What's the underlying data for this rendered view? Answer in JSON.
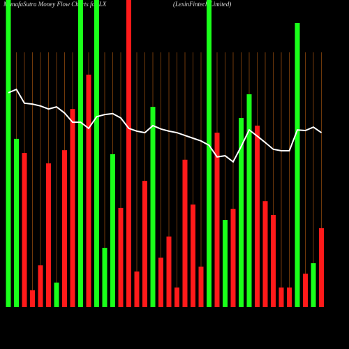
{
  "chart_data": {
    "type": "money-flow",
    "title": "MunafaSutra  Money Flow  Charts for LX",
    "subtitle": "(LexinFintech Limited)",
    "ylim": [
      0,
      100
    ],
    "grid_color": "#a0520f",
    "categories": [
      null,
      null,
      null,
      null,
      null,
      null,
      null,
      null,
      null,
      null,
      null,
      null,
      null,
      null,
      null,
      null,
      null,
      null,
      null,
      null,
      null,
      null,
      null,
      null,
      null,
      null,
      null,
      null,
      null,
      null,
      null,
      null,
      null,
      null,
      null,
      null,
      null,
      null,
      null,
      null
    ],
    "bars": {
      "values": [
        100,
        54.8,
        50.2,
        5.5,
        13.6,
        46.8,
        8,
        51.1,
        64.5,
        100,
        75.7,
        100,
        19.3,
        49.8,
        32.3,
        100,
        11.6,
        41.1,
        65.2,
        16.1,
        23,
        6.4,
        48,
        33.4,
        13.2,
        100,
        56.8,
        28.4,
        32,
        61.6,
        69.3,
        59.1,
        34.5,
        30,
        6.4,
        6.4,
        92.5,
        10.9,
        14.3,
        25.7
      ],
      "colors": [
        "#1aff1a",
        "#1aff1a",
        "#ff1a1a",
        "#ff1a1a",
        "#ff1a1a",
        "#ff1a1a",
        "#1aff1a",
        "#ff1a1a",
        "#ff1a1a",
        "#1aff1a",
        "#ff1a1a",
        "#1aff1a",
        "#1aff1a",
        "#1aff1a",
        "#ff1a1a",
        "#ff1a1a",
        "#ff1a1a",
        "#ff1a1a",
        "#1aff1a",
        "#ff1a1a",
        "#ff1a1a",
        "#ff1a1a",
        "#ff1a1a",
        "#ff1a1a",
        "#ff1a1a",
        "#1aff1a",
        "#ff1a1a",
        "#1aff1a",
        "#ff1a1a",
        "#1aff1a",
        "#1aff1a",
        "#ff1a1a",
        "#ff1a1a",
        "#ff1a1a",
        "#ff1a1a",
        "#ff1a1a",
        "#1aff1a",
        "#ff1a1a",
        "#1aff1a",
        "#ff1a1a"
      ]
    },
    "line": {
      "color": "#ffffff",
      "values": [
        69.8,
        70.9,
        66.4,
        66.1,
        65.5,
        64.5,
        65.2,
        63.2,
        60.2,
        60.2,
        58.2,
        62,
        62.7,
        63,
        61.6,
        58.2,
        57.3,
        56.8,
        59.1,
        58,
        57.3,
        56.8,
        55.9,
        55,
        54.1,
        52.7,
        48.9,
        49.3,
        47.3,
        52.3,
        57.7,
        55.7,
        53.6,
        51.4,
        50.9,
        50.9,
        57.7,
        57.5,
        58.6,
        56.8
      ]
    }
  }
}
